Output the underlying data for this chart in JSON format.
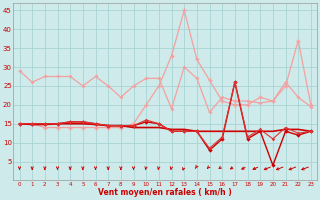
{
  "x": [
    0,
    1,
    2,
    3,
    4,
    5,
    6,
    7,
    8,
    9,
    10,
    11,
    12,
    13,
    14,
    15,
    16,
    17,
    18,
    19,
    20,
    21,
    22,
    23
  ],
  "line_pink1": [
    29,
    26,
    27.5,
    27.5,
    27.5,
    25,
    27.5,
    25,
    22,
    25,
    27,
    27,
    19,
    30,
    27,
    18,
    22,
    21,
    21,
    20.5,
    21,
    26,
    22,
    19.5
  ],
  "line_pink2": [
    15,
    15,
    14,
    14,
    14,
    14,
    14,
    14,
    14,
    15,
    20,
    25,
    33,
    45,
    32,
    26.5,
    21,
    20,
    20,
    22,
    21,
    25,
    37,
    20
  ],
  "line_red1": [
    15,
    14.8,
    14.8,
    15,
    15,
    15,
    14.8,
    14.5,
    14.5,
    14,
    14,
    14,
    13.5,
    13.5,
    13,
    13,
    13,
    13,
    13,
    13,
    13,
    13.5,
    13.5,
    13
  ],
  "line_red2": [
    15,
    15,
    15,
    15,
    15.5,
    15.5,
    15,
    14.5,
    14.5,
    14.5,
    15.5,
    15,
    13,
    13,
    13,
    8,
    11,
    26,
    11,
    13,
    4,
    13,
    12,
    13
  ],
  "line_red3": [
    15,
    15,
    15,
    15,
    15.5,
    15.5,
    15,
    14.5,
    14.5,
    14.5,
    16,
    15,
    13,
    13,
    13,
    8.5,
    11.5,
    26,
    11.5,
    13.5,
    11,
    14,
    12.5,
    13
  ],
  "background_color": "#ceeaea",
  "grid_color": "#a8d4d4",
  "xlabel": "Vent moyen/en rafales ( km/h )",
  "ylim": [
    0,
    47
  ],
  "xlim": [
    -0.5,
    23.5
  ],
  "yticks": [
    5,
    10,
    15,
    20,
    25,
    30,
    35,
    40,
    45
  ],
  "xticks": [
    0,
    1,
    2,
    3,
    4,
    5,
    6,
    7,
    8,
    9,
    10,
    11,
    12,
    13,
    14,
    15,
    16,
    17,
    18,
    19,
    20,
    21,
    22,
    23
  ]
}
